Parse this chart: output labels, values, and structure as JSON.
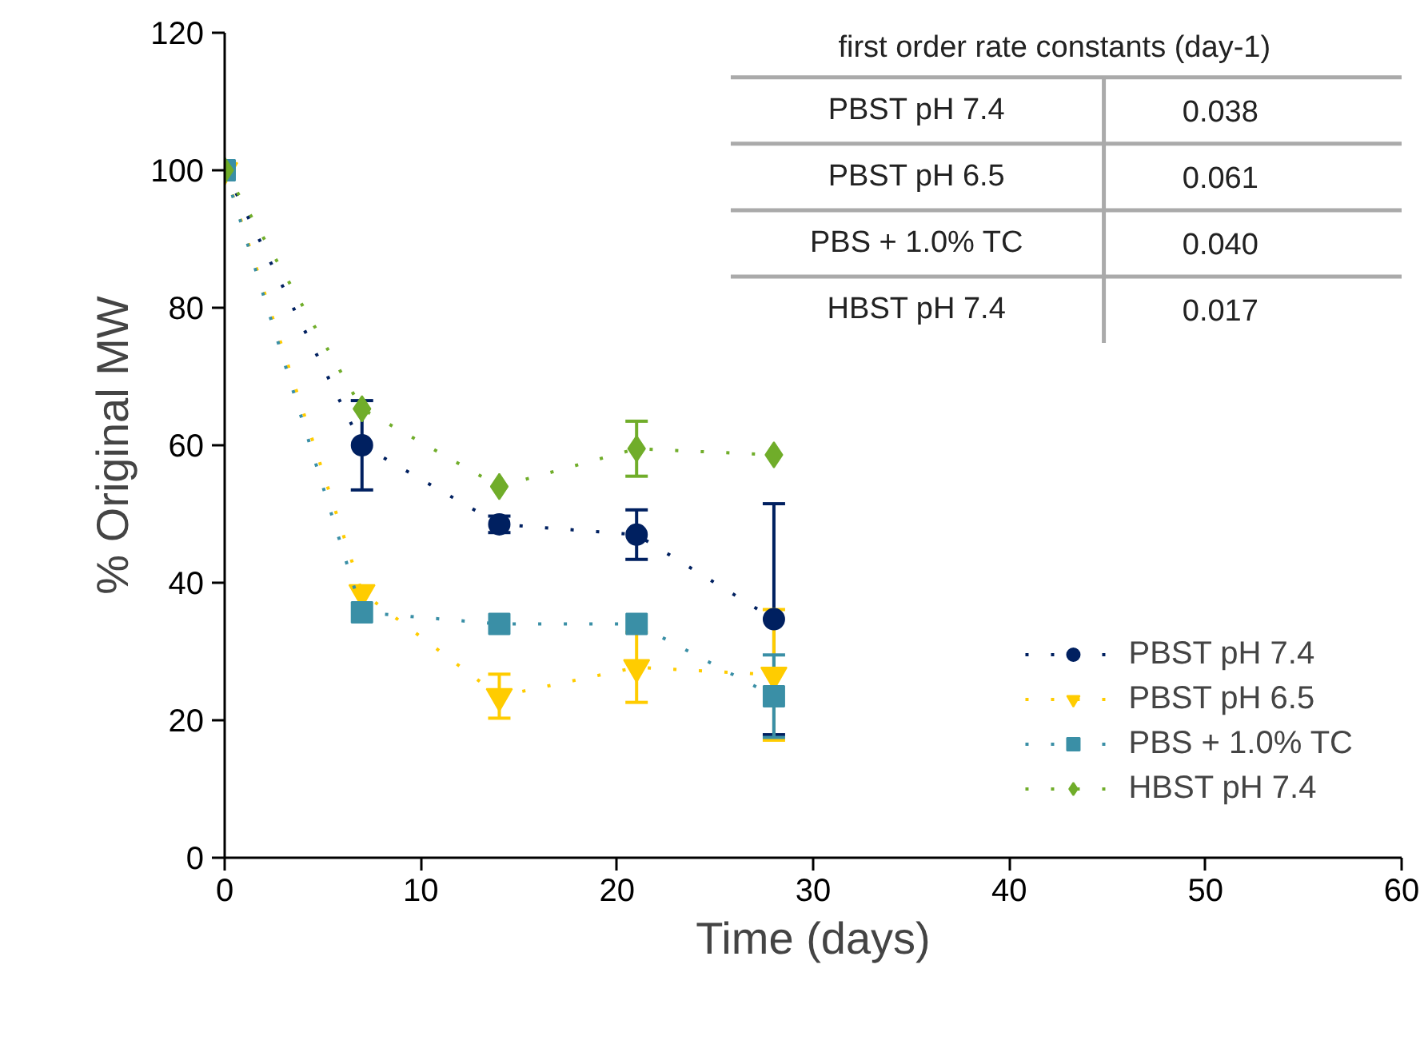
{
  "chart_data": {
    "type": "line",
    "xlabel": "Time (days)",
    "ylabel": "% Original MW",
    "xlim": [
      0,
      60
    ],
    "ylim": [
      0,
      120
    ],
    "xticks": [
      0,
      10,
      20,
      30,
      40,
      50,
      60
    ],
    "yticks": [
      0,
      20,
      40,
      60,
      80,
      100,
      120
    ],
    "grid": false,
    "legend": "bottom right",
    "line_style": "dashed",
    "series": [
      {
        "name": "PBST pH 7.4",
        "color": "#002060",
        "marker": "circle",
        "x": [
          0,
          7,
          14,
          21,
          28
        ],
        "values": [
          100,
          60.0,
          48.5,
          47.0,
          34.7
        ],
        "errors": [
          null,
          6.5,
          1.2,
          3.6,
          16.8
        ]
      },
      {
        "name": "PBST pH 6.5",
        "color": "#ffcc00",
        "marker": "triangle",
        "x": [
          0,
          7,
          14,
          21,
          28
        ],
        "values": [
          100,
          38.6,
          23.5,
          27.7,
          26.6
        ],
        "errors": [
          null,
          null,
          3.2,
          5.1,
          9.5
        ]
      },
      {
        "name": "PBS + 1.0% TC",
        "color": "#3a8fa6",
        "marker": "square",
        "x": [
          0,
          7,
          14,
          21,
          28
        ],
        "values": [
          100,
          35.7,
          34.0,
          34.0,
          23.5
        ],
        "errors": [
          null,
          null,
          null,
          null,
          6.0
        ]
      },
      {
        "name": "HBST pH 7.4",
        "color": "#70ad2a",
        "marker": "diamond",
        "x": [
          0,
          7,
          14,
          21,
          28
        ],
        "values": [
          100,
          65.3,
          54.0,
          59.5,
          58.6
        ],
        "errors": [
          null,
          null,
          null,
          4.0,
          null
        ]
      }
    ],
    "annotations": [
      "first order rate constants (day-1)",
      "PBST pH 7.4",
      "0.038",
      "PBST pH 6.5",
      "0.061",
      "PBS + 1.0% TC",
      "0.040",
      "HBST pH 7.4",
      "0.017"
    ]
  }
}
